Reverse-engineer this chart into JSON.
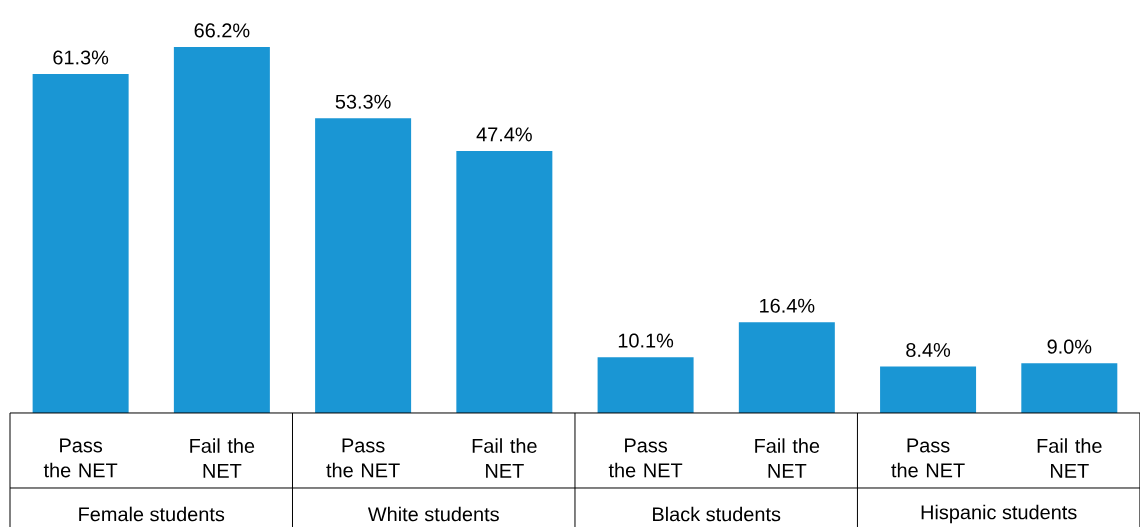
{
  "chart_data": {
    "type": "bar",
    "categories": [
      "Pass the NET",
      "Fail the NET",
      "Pass the NET",
      "Fail the NET",
      "Pass the NET",
      "Fail the NET",
      "Pass the NET",
      "Fail the NET"
    ],
    "values": [
      61.3,
      66.2,
      53.3,
      47.4,
      10.1,
      16.4,
      8.4,
      9.0
    ],
    "value_labels": [
      "61.3%",
      "66.2%",
      "53.3%",
      "47.4%",
      "10.1%",
      "16.4%",
      "8.4%",
      "9.0%"
    ],
    "color": "#1a96d4",
    "annotations": [
      "Female students",
      "White students",
      "Black students",
      "Hispanic students"
    ]
  }
}
